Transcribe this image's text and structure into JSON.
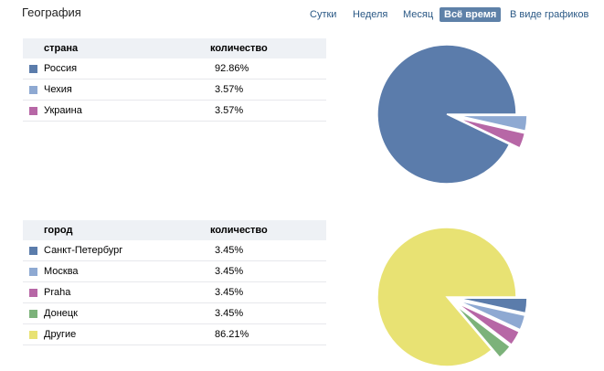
{
  "header": {
    "title": "География"
  },
  "periods": [
    {
      "label": "Сутки",
      "active": false
    },
    {
      "label": "Неделя",
      "active": false
    },
    {
      "label": "Месяц",
      "active": false
    },
    {
      "label": "Всё время",
      "active": true
    },
    {
      "label": "В виде графиков",
      "active": false
    }
  ],
  "country_table": {
    "col_name": "страна",
    "col_value": "количество",
    "rows": [
      {
        "name": "Россия",
        "value": "92.86%",
        "color": "#5b7cab"
      },
      {
        "name": "Чехия",
        "value": "3.57%",
        "color": "#8ea9d2"
      },
      {
        "name": "Украина",
        "value": "3.57%",
        "color": "#b767a6"
      }
    ]
  },
  "city_table": {
    "col_name": "город",
    "col_value": "количество",
    "rows": [
      {
        "name": "Санкт-Петербург",
        "value": "3.45%",
        "color": "#5b7cab"
      },
      {
        "name": "Москва",
        "value": "3.45%",
        "color": "#8ea9d2"
      },
      {
        "name": "Praha",
        "value": "3.45%",
        "color": "#b767a6"
      },
      {
        "name": "Донецк",
        "value": "3.45%",
        "color": "#7cb27a"
      },
      {
        "name": "Другие",
        "value": "86.21%",
        "color": "#e8e273"
      }
    ]
  },
  "chart_data": [
    {
      "type": "pie",
      "labels": [
        "Россия",
        "Чехия",
        "Украина"
      ],
      "values": [
        92.86,
        3.57,
        3.57
      ],
      "colors": [
        "#5b7cab",
        "#8ea9d2",
        "#b767a6"
      ],
      "exploded": [
        false,
        true,
        true
      ]
    },
    {
      "type": "pie",
      "labels": [
        "Санкт-Петербург",
        "Москва",
        "Praha",
        "Донецк",
        "Другие"
      ],
      "values": [
        3.45,
        3.45,
        3.45,
        3.45,
        86.21
      ],
      "colors": [
        "#5b7cab",
        "#8ea9d2",
        "#b767a6",
        "#7cb27a",
        "#e8e273"
      ],
      "exploded": [
        true,
        true,
        true,
        true,
        false
      ]
    }
  ]
}
